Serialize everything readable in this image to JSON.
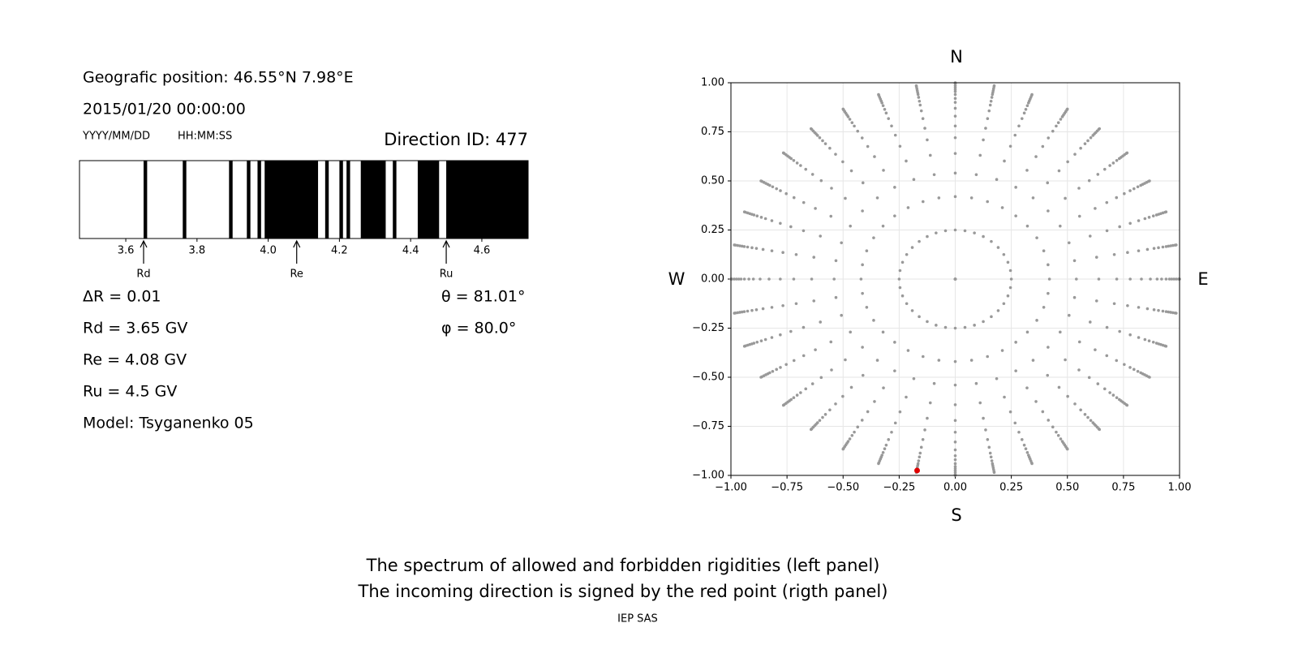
{
  "header": {
    "position": "Geografic position: 46.55°N 7.98°E",
    "datetime": "2015/01/20 00:00:00",
    "date_format": "YYYY/MM/DD",
    "time_format": "HH:MM:SS",
    "direction_id": "Direction ID: 477"
  },
  "parameters": {
    "delta_r": "ΔR = 0.01",
    "rd": "Rd = 3.65 GV",
    "re": "Re = 4.08 GV",
    "ru": "Ru = 4.5 GV",
    "model": "Model: Tsyganenko 05",
    "theta": "θ = 81.01°",
    "phi": "φ = 80.0°"
  },
  "chart_data": [
    {
      "type": "spectrum",
      "xlim": [
        3.47,
        4.73
      ],
      "xticks": [
        3.6,
        3.8,
        {
          "value": 4,
          "label": "4.0"
        },
        4.2,
        4.4,
        4.6
      ],
      "color": "#000000",
      "forbidden": [
        [
          3.65,
          3.66
        ],
        [
          3.76,
          3.77
        ],
        [
          3.89,
          3.9
        ],
        [
          3.94,
          3.95
        ],
        [
          3.97,
          3.98
        ],
        [
          3.99,
          4.14
        ],
        [
          4.16,
          4.17
        ],
        [
          4.2,
          4.21
        ],
        [
          4.22,
          4.23
        ],
        [
          4.26,
          4.33
        ],
        [
          4.35,
          4.36
        ],
        [
          4.42,
          4.48
        ],
        [
          4.5,
          4.73
        ]
      ],
      "markers": [
        {
          "label": "Rd",
          "value": 3.65
        },
        {
          "label": "Re",
          "value": 4.08
        },
        {
          "label": "Ru",
          "value": 4.5
        }
      ]
    },
    {
      "type": "polar-scatter",
      "labels": {
        "north": "N",
        "south": "S",
        "west": "W",
        "east": "E"
      },
      "xlim": [
        -1,
        1
      ],
      "ylim": [
        -1,
        1
      ],
      "xticks": [
        {
          "value": -1,
          "label": "−1.00"
        },
        {
          "value": -0.75,
          "label": "−0.75"
        },
        {
          "value": -0.5,
          "label": "−0.50"
        },
        {
          "value": -0.25,
          "label": "−0.25"
        },
        {
          "value": 0,
          "label": "0.00"
        },
        0.25,
        {
          "value": 0.5,
          "label": "0.50"
        },
        0.75,
        {
          "value": 1,
          "label": "1.00"
        }
      ],
      "yticks": [
        {
          "value": -1,
          "label": "−1.00"
        },
        {
          "value": -0.75,
          "label": "−0.75"
        },
        {
          "value": -0.5,
          "label": "−0.50"
        },
        {
          "value": -0.25,
          "label": "−0.25"
        },
        {
          "value": 0,
          "label": "0.00"
        },
        0.25,
        {
          "value": 0.5,
          "label": "0.50"
        },
        0.75,
        {
          "value": 1,
          "label": "1.00"
        }
      ],
      "grid": true,
      "color": "#999999",
      "azimuths": [
        0,
        10,
        20,
        30,
        40,
        50,
        60,
        70,
        80,
        90,
        100,
        110,
        120,
        130,
        140,
        150,
        160,
        170,
        180,
        190,
        200,
        210,
        220,
        230,
        240,
        250,
        260,
        270,
        280,
        290,
        300,
        310,
        320,
        330,
        340,
        350
      ],
      "radii": [
        0,
        0.25,
        0.42,
        0.54,
        0.64,
        0.72,
        0.78,
        0.83,
        0.87,
        0.9,
        0.92,
        0.94,
        0.955,
        0.965,
        0.975,
        0.985,
        0.995,
        1
      ],
      "highlight": {
        "x": -0.17,
        "y": -0.975,
        "color": "#e00000"
      }
    }
  ],
  "footer": {
    "caption": [
      "The spectrum of allowed and forbidden rigidities (left panel)",
      "The incoming direction is signed by the red point (rigth panel)"
    ],
    "credit": "IEP SAS"
  }
}
